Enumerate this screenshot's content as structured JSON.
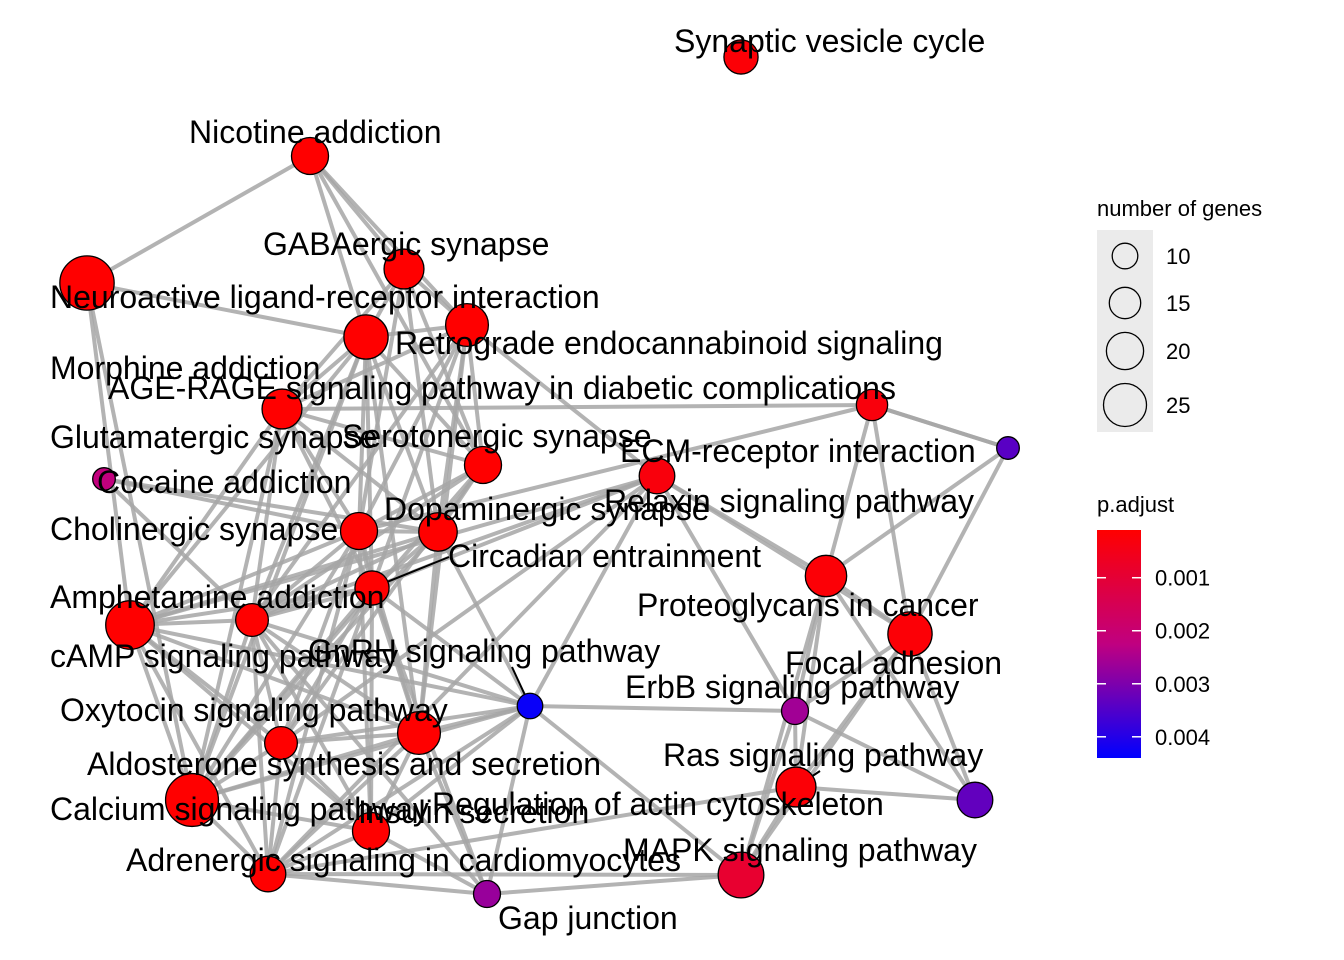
{
  "nodes": [
    {
      "id": "synaptic",
      "label": "Synaptic vesicle cycle",
      "genes": 14,
      "p_adjust": 0.0002
    },
    {
      "id": "nicotine",
      "label": "Nicotine addiction",
      "genes": 16,
      "p_adjust": 0.0001
    },
    {
      "id": "gaba",
      "label": "GABAergic synapse",
      "genes": 18,
      "p_adjust": 0.0001
    },
    {
      "id": "neuroactive",
      "label": "Neuroactive ligand-receptor interaction",
      "genes": 28,
      "p_adjust": 0.0001
    },
    {
      "id": "retrograde",
      "label": "Retrograde endocannabinoid signaling",
      "genes": 20,
      "p_adjust": 0.0001
    },
    {
      "id": "morphine",
      "label": "Morphine addiction",
      "genes": 21,
      "p_adjust": 0.0001
    },
    {
      "id": "agerage",
      "label": "AGE-RAGE signaling pathway in diabetic complications",
      "genes": 12,
      "p_adjust": 0.0003
    },
    {
      "id": "glutamatergic",
      "label": "Glutamatergic synapse",
      "genes": 18,
      "p_adjust": 0.0001
    },
    {
      "id": "serotonergic",
      "label": "Serotonergic synapse",
      "genes": 16,
      "p_adjust": 0.0001
    },
    {
      "id": "ecm",
      "label": "ECM-receptor interaction",
      "genes": 6,
      "p_adjust": 0.0034
    },
    {
      "id": "cocaine",
      "label": "Cocaine addiction",
      "genes": 6,
      "p_adjust": 0.0022
    },
    {
      "id": "relaxin",
      "label": "Relaxin signaling pathway",
      "genes": 15,
      "p_adjust": 0.0003
    },
    {
      "id": "dopaminergic",
      "label": "Dopaminergic synapse",
      "genes": 17,
      "p_adjust": 0.0001
    },
    {
      "id": "cholinergic",
      "label": "Cholinergic synapse",
      "genes": 16,
      "p_adjust": 0.0001
    },
    {
      "id": "circadian",
      "label": "Circadian entrainment",
      "genes": 14,
      "p_adjust": 0.0001
    },
    {
      "id": "proteoglycans",
      "label": "Proteoglycans in cancer",
      "genes": 19,
      "p_adjust": 0.0002
    },
    {
      "id": "amphetamine",
      "label": "Amphetamine addiction",
      "genes": 13,
      "p_adjust": 0.0001
    },
    {
      "id": "focal",
      "label": "Focal adhesion",
      "genes": 21,
      "p_adjust": 0.0002
    },
    {
      "id": "camp",
      "label": "cAMP signaling pathway",
      "genes": 24,
      "p_adjust": 0.0001
    },
    {
      "id": "gnrh",
      "label": "GnRH signaling pathway",
      "genes": 8,
      "p_adjust": 0.0043
    },
    {
      "id": "erbb",
      "label": "ErbB signaling pathway",
      "genes": 9,
      "p_adjust": 0.0026
    },
    {
      "id": "oxytocin",
      "label": "Oxytocin signaling pathway",
      "genes": 20,
      "p_adjust": 0.0001
    },
    {
      "id": "aldosterone",
      "label": "Aldosterone synthesis and secretion",
      "genes": 13,
      "p_adjust": 0.0001
    },
    {
      "id": "ras",
      "label": "Ras signaling pathway",
      "genes": 18,
      "p_adjust": 0.0002
    },
    {
      "id": "regulation",
      "label": "Regulation of actin cytoskeleton",
      "genes": 15,
      "p_adjust": 0.0033
    },
    {
      "id": "calcium",
      "label": "Calcium signaling pathway",
      "genes": 27,
      "p_adjust": 0.0001
    },
    {
      "id": "insulin",
      "label": "Insulin secretion",
      "genes": 16,
      "p_adjust": 0.0001
    },
    {
      "id": "mapk",
      "label": "MAPK signaling pathway",
      "genes": 22,
      "p_adjust": 0.0009
    },
    {
      "id": "adrenergic",
      "label": "Adrenergic signaling in cardiomyocytes",
      "genes": 15,
      "p_adjust": 0.0001
    },
    {
      "id": "gap",
      "label": "Gap junction",
      "genes": 9,
      "p_adjust": 0.0027
    }
  ],
  "edges": [
    [
      "nicotine",
      "neuroactive"
    ],
    [
      "nicotine",
      "gaba"
    ],
    [
      "nicotine",
      "morphine"
    ],
    [
      "nicotine",
      "retrograde"
    ],
    [
      "nicotine",
      "serotonergic"
    ],
    [
      "neuroactive",
      "calcium"
    ],
    [
      "neuroactive",
      "camp"
    ],
    [
      "neuroactive",
      "morphine"
    ],
    [
      "gaba",
      "morphine"
    ],
    [
      "gaba",
      "retrograde"
    ],
    [
      "gaba",
      "glutamatergic"
    ],
    [
      "gaba",
      "serotonergic"
    ],
    [
      "gaba",
      "dopaminergic"
    ],
    [
      "gaba",
      "cholinergic"
    ],
    [
      "morphine",
      "retrograde"
    ],
    [
      "morphine",
      "dopaminergic"
    ],
    [
      "morphine",
      "serotonergic"
    ],
    [
      "morphine",
      "glutamatergic"
    ],
    [
      "morphine",
      "cholinergic"
    ],
    [
      "morphine",
      "circadian"
    ],
    [
      "morphine",
      "camp"
    ],
    [
      "morphine",
      "amphetamine"
    ],
    [
      "morphine",
      "oxytocin"
    ],
    [
      "morphine",
      "calcium"
    ],
    [
      "retrograde",
      "serotonergic"
    ],
    [
      "retrograde",
      "glutamatergic"
    ],
    [
      "retrograde",
      "dopaminergic"
    ],
    [
      "retrograde",
      "cholinergic"
    ],
    [
      "retrograde",
      "circadian"
    ],
    [
      "retrograde",
      "relaxin"
    ],
    [
      "retrograde",
      "amphetamine"
    ],
    [
      "retrograde",
      "oxytocin"
    ],
    [
      "agerage",
      "cholinergic"
    ],
    [
      "agerage",
      "glutamatergic"
    ],
    [
      "agerage",
      "proteoglycans"
    ],
    [
      "agerage",
      "focal"
    ],
    [
      "agerage",
      "ecm"
    ],
    [
      "glutamatergic",
      "cholinergic"
    ],
    [
      "glutamatergic",
      "amphetamine"
    ],
    [
      "glutamatergic",
      "camp"
    ],
    [
      "glutamatergic",
      "circadian"
    ],
    [
      "glutamatergic",
      "dopaminergic"
    ],
    [
      "glutamatergic",
      "serotonergic"
    ],
    [
      "glutamatergic",
      "calcium"
    ],
    [
      "serotonergic",
      "dopaminergic"
    ],
    [
      "serotonergic",
      "cholinergic"
    ],
    [
      "serotonergic",
      "calcium"
    ],
    [
      "serotonergic",
      "aldosterone"
    ],
    [
      "serotonergic",
      "amphetamine"
    ],
    [
      "ecm",
      "focal"
    ],
    [
      "ecm",
      "proteoglycans"
    ],
    [
      "ecm",
      "agerage"
    ],
    [
      "cocaine",
      "cholinergic"
    ],
    [
      "cocaine",
      "amphetamine"
    ],
    [
      "cocaine",
      "dopaminergic"
    ],
    [
      "relaxin",
      "proteoglycans"
    ],
    [
      "relaxin",
      "focal"
    ],
    [
      "relaxin",
      "camp"
    ],
    [
      "relaxin",
      "circadian"
    ],
    [
      "relaxin",
      "gnrh"
    ],
    [
      "relaxin",
      "erbb"
    ],
    [
      "relaxin",
      "amphetamine"
    ],
    [
      "relaxin",
      "aldosterone"
    ],
    [
      "relaxin",
      "adrenergic"
    ],
    [
      "dopaminergic",
      "cholinergic"
    ],
    [
      "dopaminergic",
      "amphetamine"
    ],
    [
      "dopaminergic",
      "circadian"
    ],
    [
      "dopaminergic",
      "camp"
    ],
    [
      "dopaminergic",
      "oxytocin"
    ],
    [
      "dopaminergic",
      "calcium"
    ],
    [
      "dopaminergic",
      "gnrh"
    ],
    [
      "cholinergic",
      "amphetamine"
    ],
    [
      "cholinergic",
      "camp"
    ],
    [
      "cholinergic",
      "calcium"
    ],
    [
      "cholinergic",
      "circadian"
    ],
    [
      "cholinergic",
      "insulin"
    ],
    [
      "cholinergic",
      "aldosterone"
    ],
    [
      "cholinergic",
      "oxytocin"
    ],
    [
      "cholinergic",
      "adrenergic"
    ],
    [
      "circadian",
      "amphetamine"
    ],
    [
      "circadian",
      "oxytocin"
    ],
    [
      "circadian",
      "camp"
    ],
    [
      "circadian",
      "calcium"
    ],
    [
      "circadian",
      "insulin"
    ],
    [
      "circadian",
      "gnrh"
    ],
    [
      "circadian",
      "gap"
    ],
    [
      "circadian",
      "adrenergic"
    ],
    [
      "circadian",
      "aldosterone"
    ],
    [
      "proteoglycans",
      "focal"
    ],
    [
      "proteoglycans",
      "erbb"
    ],
    [
      "proteoglycans",
      "mapk"
    ],
    [
      "proteoglycans",
      "ras"
    ],
    [
      "proteoglycans",
      "regulation"
    ],
    [
      "amphetamine",
      "camp"
    ],
    [
      "amphetamine",
      "calcium"
    ],
    [
      "amphetamine",
      "aldosterone"
    ],
    [
      "amphetamine",
      "oxytocin"
    ],
    [
      "amphetamine",
      "adrenergic"
    ],
    [
      "amphetamine",
      "insulin"
    ],
    [
      "amphetamine",
      "gnrh"
    ],
    [
      "amphetamine",
      "gap"
    ],
    [
      "focal",
      "regulation"
    ],
    [
      "focal",
      "erbb"
    ],
    [
      "focal",
      "ras"
    ],
    [
      "focal",
      "mapk"
    ],
    [
      "camp",
      "oxytocin"
    ],
    [
      "camp",
      "calcium"
    ],
    [
      "camp",
      "aldosterone"
    ],
    [
      "camp",
      "adrenergic"
    ],
    [
      "camp",
      "insulin"
    ],
    [
      "camp",
      "gnrh"
    ],
    [
      "gnrh",
      "erbb"
    ],
    [
      "gnrh",
      "oxytocin"
    ],
    [
      "gnrh",
      "aldosterone"
    ],
    [
      "gnrh",
      "calcium"
    ],
    [
      "gnrh",
      "mapk"
    ],
    [
      "gnrh",
      "insulin"
    ],
    [
      "gnrh",
      "gap"
    ],
    [
      "gnrh",
      "adrenergic"
    ],
    [
      "erbb",
      "ras"
    ],
    [
      "erbb",
      "mapk"
    ],
    [
      "erbb",
      "regulation"
    ],
    [
      "oxytocin",
      "aldosterone"
    ],
    [
      "oxytocin",
      "calcium"
    ],
    [
      "oxytocin",
      "adrenergic"
    ],
    [
      "oxytocin",
      "insulin"
    ],
    [
      "oxytocin",
      "gap"
    ],
    [
      "aldosterone",
      "calcium"
    ],
    [
      "aldosterone",
      "insulin"
    ],
    [
      "aldosterone",
      "adrenergic"
    ],
    [
      "ras",
      "mapk"
    ],
    [
      "ras",
      "regulation"
    ],
    [
      "ras",
      "adrenergic"
    ],
    [
      "calcium",
      "adrenergic"
    ],
    [
      "calcium",
      "insulin"
    ],
    [
      "insulin",
      "adrenergic"
    ],
    [
      "insulin",
      "gap"
    ],
    [
      "mapk",
      "gap"
    ],
    [
      "mapk",
      "adrenergic"
    ],
    [
      "adrenergic",
      "gap"
    ]
  ],
  "legend": {
    "size_title": "number of genes",
    "size_items": [
      {
        "label": "10",
        "genes": 10
      },
      {
        "label": "15",
        "genes": 15
      },
      {
        "label": "20",
        "genes": 20
      },
      {
        "label": "25",
        "genes": 25
      }
    ],
    "color_title": "p.adjust",
    "color_ticks": [
      {
        "label": "0.001",
        "value": 0.001
      },
      {
        "label": "0.002",
        "value": 0.002
      },
      {
        "label": "0.003",
        "value": 0.003
      },
      {
        "label": "0.004",
        "value": 0.004
      }
    ],
    "color_range": [
      0.0001,
      0.0044
    ],
    "color_low": "#FF0000",
    "color_high": "#0000FF"
  },
  "colors": {
    "edge": "#A6A6A6",
    "node_stroke": "#000000",
    "legend_bg": "#EBEBEB"
  }
}
